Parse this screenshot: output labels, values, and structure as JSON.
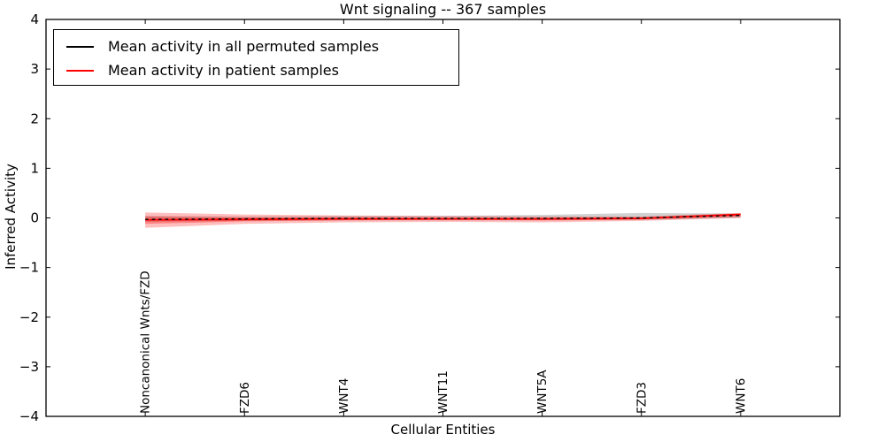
{
  "chart_data": {
    "type": "line",
    "title": "Wnt signaling -- 367 samples",
    "xlabel": "Cellular Entities",
    "ylabel": "Inferred Activity",
    "ylim": [
      -4,
      4
    ],
    "grid": false,
    "legend_position": "upper left",
    "frame_color": "#000000",
    "categories": [
      "Noncanonical Wnts/FZD",
      "FZD6",
      "WNT4",
      "WNT11",
      "WNT5A",
      "FZD3",
      "WNT6"
    ],
    "yticks": [
      {
        "value": 4,
        "label": "4"
      },
      {
        "value": 3,
        "label": "3"
      },
      {
        "value": 2,
        "label": "2"
      },
      {
        "value": 1,
        "label": "1"
      },
      {
        "value": 0,
        "label": "0"
      },
      {
        "value": -1,
        "label": "−1"
      },
      {
        "value": -2,
        "label": "−2"
      },
      {
        "value": -3,
        "label": "−3"
      },
      {
        "value": -4,
        "label": "−4"
      }
    ],
    "series": [
      {
        "name": "Mean activity in all permuted samples",
        "color": "#000000",
        "line_style": "dashed",
        "values": [
          -0.03,
          -0.02,
          -0.01,
          -0.01,
          -0.01,
          0.0,
          0.05
        ],
        "band": {
          "color": "#999999",
          "opacity": 0.45,
          "upper": [
            0.04,
            0.03,
            0.04,
            0.04,
            0.06,
            0.1,
            0.09
          ],
          "lower": [
            -0.08,
            -0.06,
            -0.05,
            -0.05,
            -0.05,
            -0.04,
            0.0
          ]
        }
      },
      {
        "name": "Mean activity in patient samples",
        "color": "#ff0000",
        "line_style": "solid",
        "values": [
          -0.04,
          -0.03,
          -0.02,
          -0.02,
          -0.02,
          -0.01,
          0.07
        ],
        "band": {
          "color": "#ff0000",
          "opacity": 0.25,
          "upper": [
            0.11,
            0.07,
            0.05,
            0.04,
            0.03,
            0.03,
            0.1
          ],
          "lower": [
            -0.2,
            -0.12,
            -0.09,
            -0.08,
            -0.09,
            -0.06,
            0.0
          ]
        },
        "band_inner": {
          "color": "#ff0000",
          "opacity": 0.3,
          "upper": [
            0.03,
            0.01,
            0.01,
            0.0,
            0.0,
            0.01,
            0.08
          ],
          "lower": [
            -0.12,
            -0.07,
            -0.05,
            -0.04,
            -0.05,
            -0.03,
            0.03
          ]
        }
      }
    ]
  }
}
